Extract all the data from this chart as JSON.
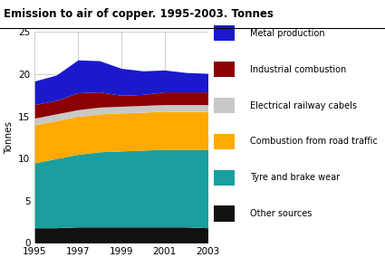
{
  "title": "Emission to air of copper. 1995-2003. Tonnes",
  "ylabel": "Tonnes",
  "years": [
    1995,
    1996,
    1997,
    1998,
    1999,
    2000,
    2001,
    2002,
    2003
  ],
  "series": {
    "Other sources": {
      "values": [
        1.8,
        1.8,
        1.9,
        1.9,
        1.9,
        1.9,
        1.9,
        1.9,
        1.8
      ],
      "color": "#111111"
    },
    "Tyre and brake wear": {
      "values": [
        7.7,
        8.2,
        8.6,
        8.9,
        9.0,
        9.1,
        9.2,
        9.2,
        9.3
      ],
      "color": "#1a9e9e"
    },
    "Combustion from road traffic": {
      "values": [
        4.5,
        4.5,
        4.5,
        4.5,
        4.5,
        4.5,
        4.5,
        4.5,
        4.5
      ],
      "color": "#ffaa00"
    },
    "Electrical railway cabels": {
      "values": [
        0.8,
        0.8,
        0.8,
        0.8,
        0.8,
        0.8,
        0.8,
        0.8,
        0.8
      ],
      "color": "#c8c8c8"
    },
    "Industrial combustion": {
      "values": [
        1.6,
        1.6,
        2.0,
        1.8,
        1.3,
        1.3,
        1.5,
        1.5,
        1.5
      ],
      "color": "#8b0000"
    },
    "Metal production": {
      "values": [
        2.8,
        3.0,
        3.9,
        3.7,
        3.2,
        2.8,
        2.6,
        2.3,
        2.2
      ],
      "color": "#1a1acc"
    }
  },
  "ylim": [
    0,
    25
  ],
  "yticks": [
    0,
    5,
    10,
    15,
    20,
    25
  ],
  "xticks": [
    1995,
    1997,
    1999,
    2001,
    2003
  ],
  "background_color": "#ffffff"
}
